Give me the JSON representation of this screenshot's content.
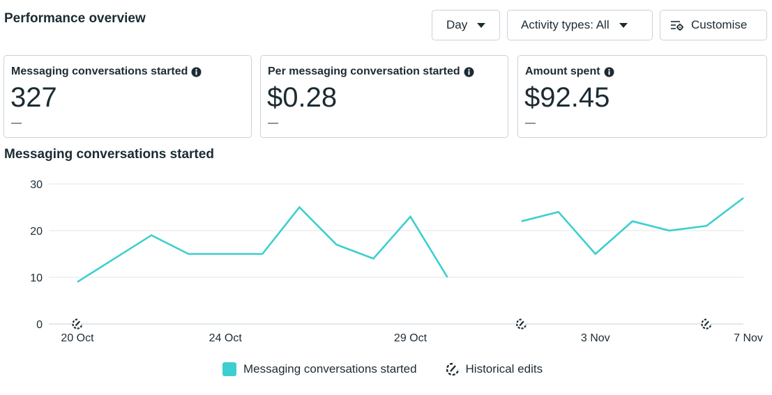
{
  "header": {
    "title": "Performance overview"
  },
  "toolbar": {
    "day_label": "Day",
    "activity_label": "Activity types: All",
    "customise_label": "Customise"
  },
  "cards": [
    {
      "label": "Messaging conversations started",
      "value": "327",
      "delta": "—"
    },
    {
      "label": "Per messaging conversation started",
      "value": "$0.28",
      "delta": "—"
    },
    {
      "label": "Amount spent",
      "value": "$92.45",
      "delta": "—"
    }
  ],
  "chart_section": {
    "title": "Messaging conversations started"
  },
  "chart_data": {
    "type": "line",
    "x": [
      "20 Oct",
      "21 Oct",
      "22 Oct",
      "23 Oct",
      "24 Oct",
      "25 Oct",
      "26 Oct",
      "27 Oct",
      "28 Oct",
      "29 Oct",
      "30 Oct",
      "31 Oct",
      "1 Nov",
      "2 Nov",
      "3 Nov",
      "4 Nov",
      "5 Nov",
      "6 Nov",
      "7 Nov"
    ],
    "tick_labels": [
      "20 Oct",
      "24 Oct",
      "29 Oct",
      "3 Nov",
      "7 Nov"
    ],
    "tick_indices": [
      0,
      4,
      9,
      14,
      18
    ],
    "series": [
      {
        "name": "Messaging conversations started",
        "color": "#3ccfcf",
        "values": [
          9,
          14,
          19,
          15,
          15,
          15,
          25,
          17,
          14,
          23,
          10,
          null,
          22,
          24,
          15,
          22,
          20,
          21,
          27
        ]
      }
    ],
    "yticks": [
      0,
      10,
      20,
      30
    ],
    "ylim": [
      0,
      30
    ],
    "grid": true,
    "historical_edit_indices": [
      0,
      12,
      17
    ],
    "legend": [
      {
        "label": "Messaging conversations started",
        "icon": "teal-swatch"
      },
      {
        "label": "Historical edits",
        "icon": "historical-edit-icon"
      }
    ],
    "legend_position": "bottom-center"
  }
}
